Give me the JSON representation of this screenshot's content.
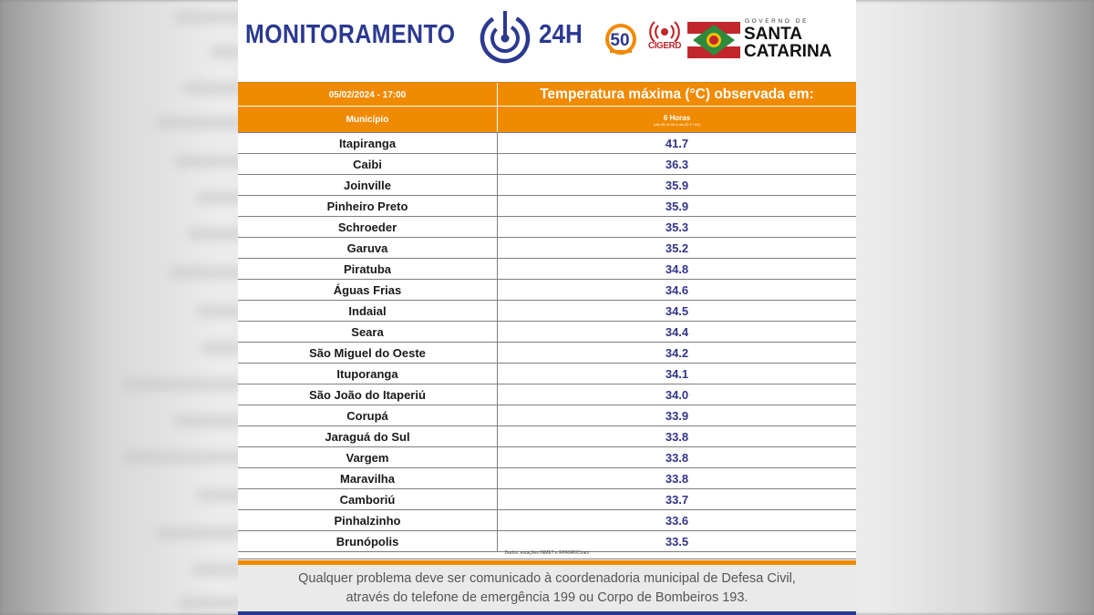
{
  "header": {
    "brand": "MONITORAMENTO",
    "brand_suffix": "24H",
    "logo50_text": "50",
    "cigerd_text": "CIGERD",
    "gov_small": "GOVERNO DE",
    "gov_line1": "SANTA",
    "gov_line2": "CATARINA"
  },
  "table": {
    "datetime": "05/02/2024 - 17:00",
    "title": "Temperatura máxima (°C) observada em:",
    "col_municipio": "Município",
    "col_period": "6 Horas",
    "col_period_sub": "(dia 05 11:00 a dia 05 17:00)",
    "rows": [
      {
        "name": "Itapiranga",
        "value": "41.7"
      },
      {
        "name": "Caibi",
        "value": "36.3"
      },
      {
        "name": "Joinville",
        "value": "35.9"
      },
      {
        "name": "Pinheiro Preto",
        "value": "35.9"
      },
      {
        "name": "Schroeder",
        "value": "35.3"
      },
      {
        "name": "Garuva",
        "value": "35.2"
      },
      {
        "name": "Piratuba",
        "value": "34.8"
      },
      {
        "name": "Águas Frias",
        "value": "34.6"
      },
      {
        "name": "Indaial",
        "value": "34.5"
      },
      {
        "name": "Seara",
        "value": "34.4"
      },
      {
        "name": "São Miguel do Oeste",
        "value": "34.2"
      },
      {
        "name": "Ituporanga",
        "value": "34.1"
      },
      {
        "name": "São João do Itaperiú",
        "value": "34.0"
      },
      {
        "name": "Corupá",
        "value": "33.9"
      },
      {
        "name": "Jaraguá do Sul",
        "value": "33.8"
      },
      {
        "name": "Vargem",
        "value": "33.8"
      },
      {
        "name": "Maravilha",
        "value": "33.8"
      },
      {
        "name": "Camboriú",
        "value": "33.7"
      },
      {
        "name": "Pinhalzinho",
        "value": "33.6"
      },
      {
        "name": "Brunópolis",
        "value": "33.5"
      }
    ],
    "source": "Dados: estações INMET e EPAGRI/Ciram"
  },
  "footer": {
    "line1": "Qualquer problema deve ser comunicado à coordenadoria municipal de Defesa Civil,",
    "line2": "através do telefone de emergência 199 ou Corpo de Bombeiros 193."
  },
  "colors": {
    "orange": "#f08a00",
    "navy": "#2b3990",
    "value_text": "#33348a"
  }
}
